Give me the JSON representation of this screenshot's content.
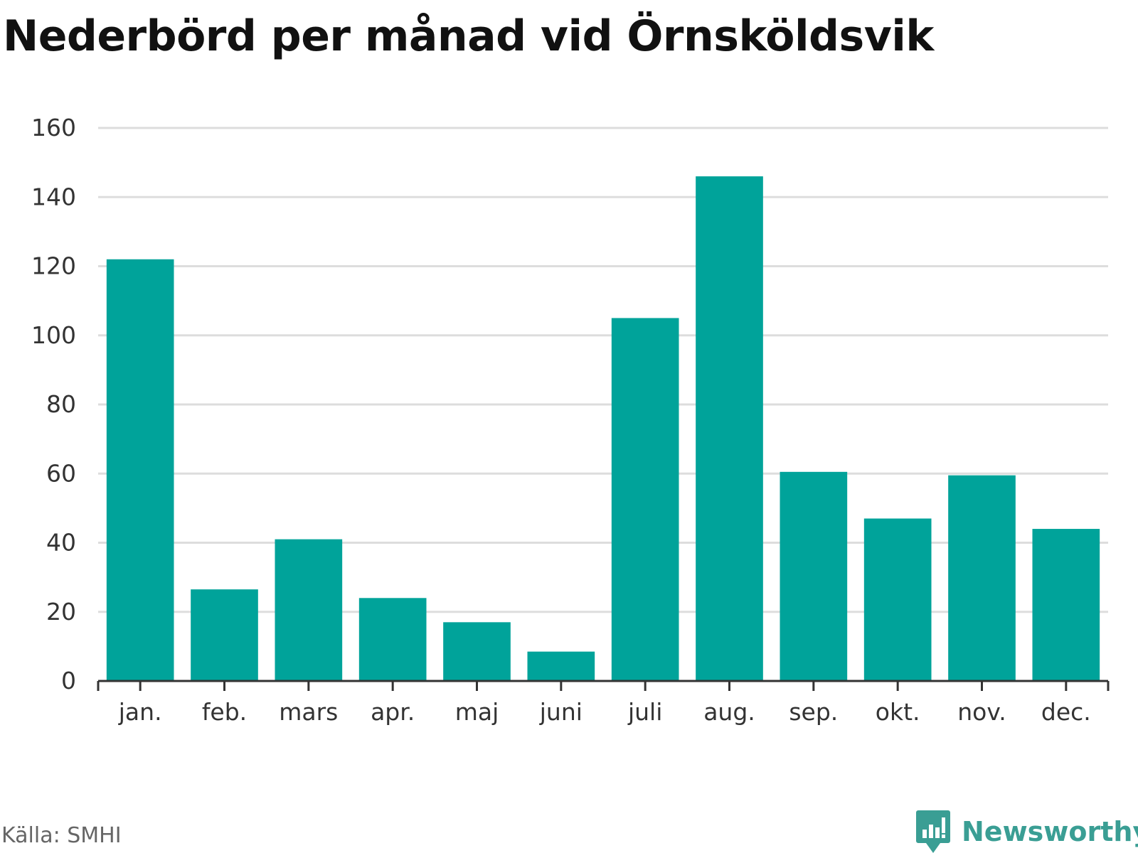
{
  "chart_data": {
    "type": "bar",
    "title": "Nederbörd per månad vid Örnsköldsvik",
    "xlabel": "",
    "ylabel": "",
    "categories": [
      "jan.",
      "feb.",
      "mars",
      "apr.",
      "maj",
      "juni",
      "juli",
      "aug.",
      "sep.",
      "okt.",
      "nov.",
      "dec."
    ],
    "values": [
      122,
      26.5,
      41,
      24,
      17,
      8.5,
      105,
      146,
      60.5,
      47,
      59.5,
      44
    ],
    "ylim": [
      0,
      160
    ],
    "yticks": [
      0,
      20,
      40,
      60,
      80,
      100,
      120,
      140,
      160
    ],
    "grid": true,
    "legend": "none",
    "bar_color": "#00a39a"
  },
  "source": "Källa: SMHI",
  "brand": {
    "name": "Newsworthy",
    "color": "#3a9e94",
    "icon": "bar-chart-speech-bubble-icon"
  }
}
